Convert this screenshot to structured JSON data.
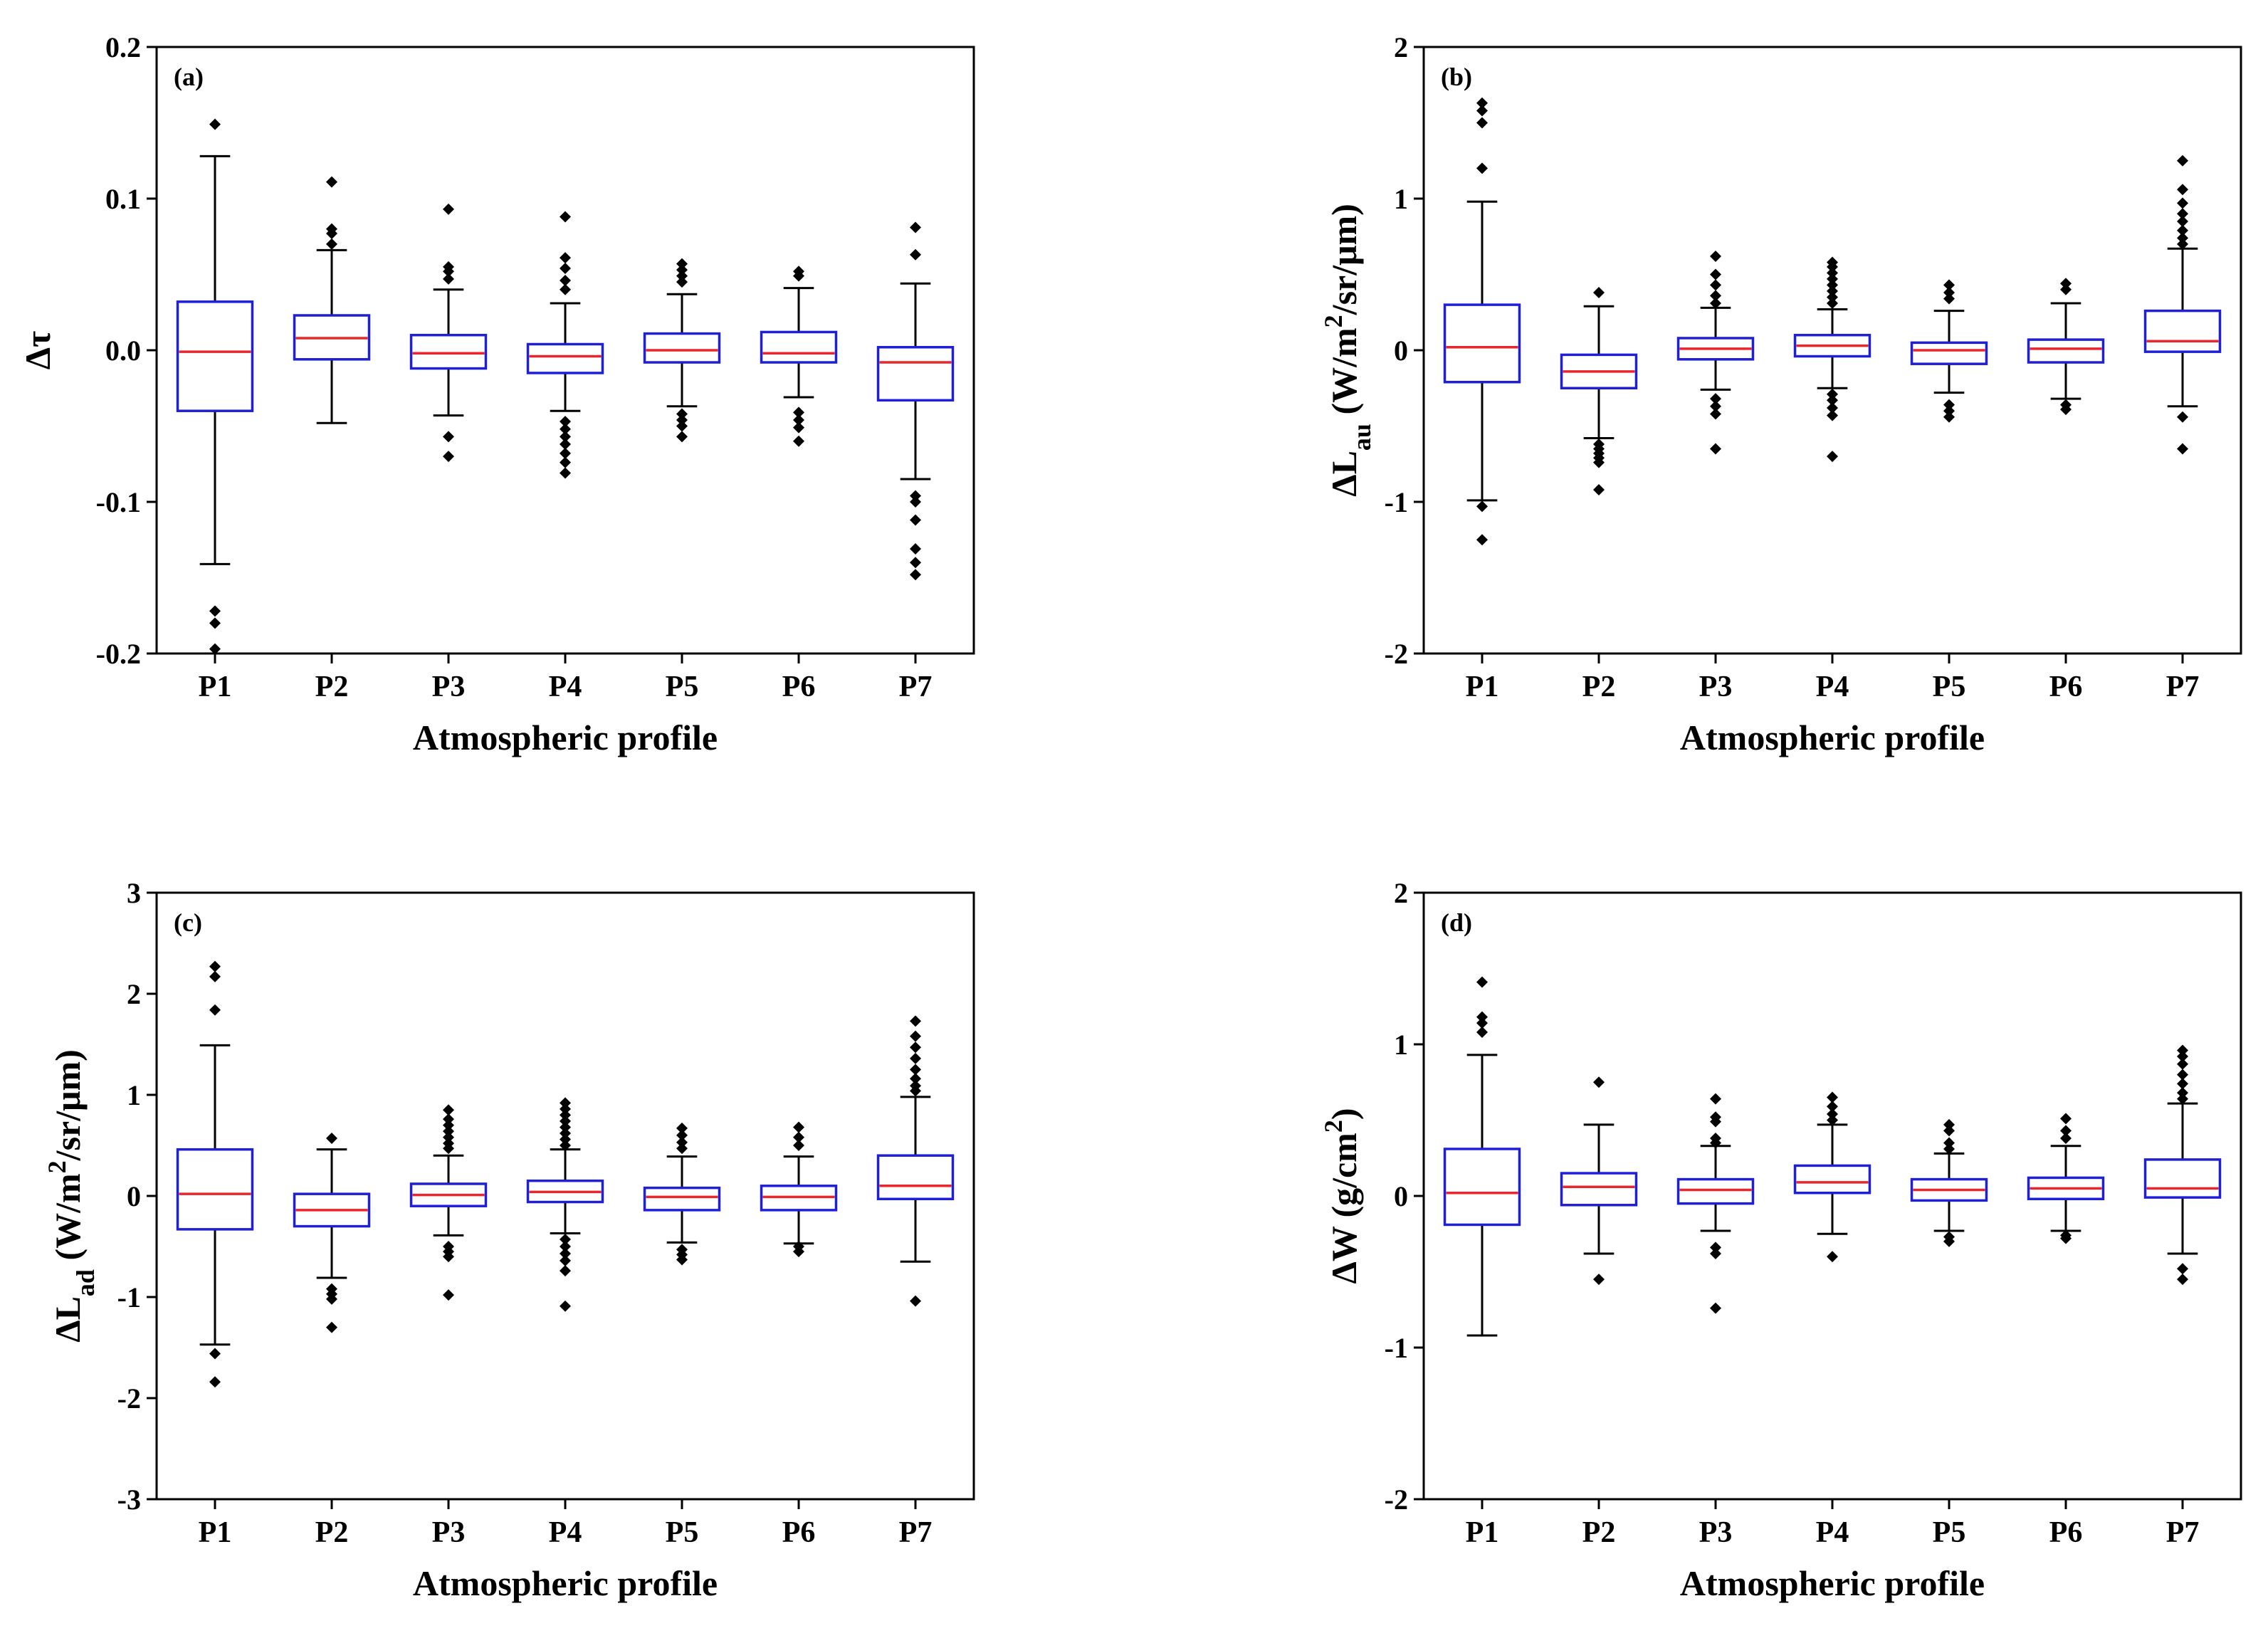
{
  "chart_data": [
    {
      "type": "box",
      "panel_label": "(a)",
      "ylabel_main": "Δτ",
      "ylabel_sub": "",
      "ylabel_tail": "",
      "ylabel_sup": "",
      "ylabel_end": "",
      "xlabel": "Atmospheric profile",
      "categories": [
        "P1",
        "P2",
        "P3",
        "P4",
        "P5",
        "P6",
        "P7"
      ],
      "ylim": [
        -0.2,
        0.2
      ],
      "yticks": [
        -0.2,
        -0.1,
        0.0,
        0.1,
        0.2
      ],
      "ytick_labels": [
        "-0.2",
        "-0.1",
        "0.0",
        "0.1",
        "0.2"
      ],
      "boxes": [
        {
          "whislo": -0.141,
          "q1": -0.04,
          "med": -0.001,
          "q3": 0.032,
          "whishi": 0.128,
          "fliers": [
            0.149,
            -0.172,
            -0.18,
            -0.197
          ]
        },
        {
          "whislo": -0.048,
          "q1": -0.006,
          "med": 0.008,
          "q3": 0.023,
          "whishi": 0.066,
          "fliers": [
            0.111,
            0.08,
            0.077,
            0.07
          ]
        },
        {
          "whislo": -0.043,
          "q1": -0.012,
          "med": -0.002,
          "q3": 0.01,
          "whishi": 0.04,
          "fliers": [
            0.093,
            0.055,
            0.052,
            0.047,
            -0.057,
            -0.07
          ]
        },
        {
          "whislo": -0.04,
          "q1": -0.015,
          "med": -0.004,
          "q3": 0.004,
          "whishi": 0.031,
          "fliers": [
            0.088,
            0.061,
            0.054,
            0.046,
            0.04,
            -0.047,
            -0.052,
            -0.057,
            -0.062,
            -0.068,
            -0.074,
            -0.081
          ]
        },
        {
          "whislo": -0.037,
          "q1": -0.008,
          "med": 0.0,
          "q3": 0.011,
          "whishi": 0.037,
          "fliers": [
            0.057,
            0.053,
            0.049,
            0.045,
            -0.042,
            -0.046,
            -0.05,
            -0.057
          ]
        },
        {
          "whislo": -0.031,
          "q1": -0.008,
          "med": -0.002,
          "q3": 0.012,
          "whishi": 0.041,
          "fliers": [
            0.052,
            0.049,
            -0.041,
            -0.046,
            -0.051,
            -0.06
          ]
        },
        {
          "whislo": -0.085,
          "q1": -0.033,
          "med": -0.008,
          "q3": 0.002,
          "whishi": 0.044,
          "fliers": [
            0.081,
            0.063,
            -0.096,
            -0.1,
            -0.112,
            -0.131,
            -0.14,
            -0.148
          ]
        }
      ]
    },
    {
      "type": "box",
      "panel_label": "(b)",
      "ylabel_main": "ΔL",
      "ylabel_sub": "au",
      "ylabel_tail": " (W/m",
      "ylabel_sup": "2",
      "ylabel_end": "/sr/μm)",
      "xlabel": "Atmospheric profile",
      "categories": [
        "P1",
        "P2",
        "P3",
        "P4",
        "P5",
        "P6",
        "P7"
      ],
      "ylim": [
        -2,
        2
      ],
      "yticks": [
        -2,
        -1,
        0,
        1,
        2
      ],
      "ytick_labels": [
        "-2",
        "-1",
        "0",
        "1",
        "2"
      ],
      "boxes": [
        {
          "whislo": -0.99,
          "q1": -0.21,
          "med": 0.02,
          "q3": 0.3,
          "whishi": 0.98,
          "fliers": [
            1.63,
            1.58,
            1.5,
            1.2,
            -1.03,
            -1.25
          ]
        },
        {
          "whislo": -0.58,
          "q1": -0.25,
          "med": -0.14,
          "q3": -0.03,
          "whishi": 0.29,
          "fliers": [
            0.38,
            -0.62,
            -0.65,
            -0.68,
            -0.71,
            -0.74,
            -0.92
          ]
        },
        {
          "whislo": -0.26,
          "q1": -0.06,
          "med": 0.01,
          "q3": 0.08,
          "whishi": 0.28,
          "fliers": [
            0.62,
            0.5,
            0.43,
            0.36,
            0.31,
            -0.32,
            -0.37,
            -0.42,
            -0.65
          ]
        },
        {
          "whislo": -0.25,
          "q1": -0.04,
          "med": 0.03,
          "q3": 0.1,
          "whishi": 0.27,
          "fliers": [
            0.58,
            0.55,
            0.51,
            0.47,
            0.43,
            0.39,
            0.35,
            0.31,
            -0.29,
            -0.33,
            -0.38,
            -0.43,
            -0.7
          ]
        },
        {
          "whislo": -0.28,
          "q1": -0.09,
          "med": 0.0,
          "q3": 0.05,
          "whishi": 0.26,
          "fliers": [
            0.43,
            0.38,
            0.34,
            -0.36,
            -0.4,
            -0.44
          ]
        },
        {
          "whislo": -0.32,
          "q1": -0.08,
          "med": 0.01,
          "q3": 0.07,
          "whishi": 0.31,
          "fliers": [
            0.44,
            0.4,
            -0.36,
            -0.39
          ]
        },
        {
          "whislo": -0.37,
          "q1": -0.01,
          "med": 0.06,
          "q3": 0.26,
          "whishi": 0.67,
          "fliers": [
            1.25,
            1.06,
            0.97,
            0.9,
            0.85,
            0.79,
            0.74,
            0.7,
            -0.44,
            -0.65
          ]
        }
      ]
    },
    {
      "type": "box",
      "panel_label": "(c)",
      "ylabel_main": "ΔL",
      "ylabel_sub": "ad",
      "ylabel_tail": " (W/m",
      "ylabel_sup": "2",
      "ylabel_end": "/sr/μm)",
      "xlabel": "Atmospheric profile",
      "categories": [
        "P1",
        "P2",
        "P3",
        "P4",
        "P5",
        "P6",
        "P7"
      ],
      "ylim": [
        -3,
        3
      ],
      "yticks": [
        -3,
        -2,
        -1,
        0,
        1,
        2,
        3
      ],
      "ytick_labels": [
        "-3",
        "-2",
        "-1",
        "0",
        "1",
        "2",
        "3"
      ],
      "boxes": [
        {
          "whislo": -1.47,
          "q1": -0.33,
          "med": 0.02,
          "q3": 0.46,
          "whishi": 1.49,
          "fliers": [
            2.27,
            2.17,
            1.84,
            -1.56,
            -1.84
          ]
        },
        {
          "whislo": -0.81,
          "q1": -0.3,
          "med": -0.14,
          "q3": 0.02,
          "whishi": 0.46,
          "fliers": [
            0.57,
            -0.92,
            -0.97,
            -1.02,
            -1.3
          ]
        },
        {
          "whislo": -0.39,
          "q1": -0.1,
          "med": 0.01,
          "q3": 0.12,
          "whishi": 0.4,
          "fliers": [
            0.85,
            0.76,
            0.7,
            0.64,
            0.58,
            0.52,
            0.47,
            -0.5,
            -0.55,
            -0.6,
            -0.98
          ]
        },
        {
          "whislo": -0.37,
          "q1": -0.06,
          "med": 0.04,
          "q3": 0.15,
          "whishi": 0.46,
          "fliers": [
            0.92,
            0.86,
            0.8,
            0.74,
            0.68,
            0.62,
            0.56,
            0.5,
            -0.43,
            -0.5,
            -0.57,
            -0.64,
            -0.74,
            -1.09
          ]
        },
        {
          "whislo": -0.46,
          "q1": -0.14,
          "med": -0.01,
          "q3": 0.08,
          "whishi": 0.39,
          "fliers": [
            0.67,
            0.6,
            0.53,
            0.47,
            -0.53,
            -0.58,
            -0.63
          ]
        },
        {
          "whislo": -0.47,
          "q1": -0.14,
          "med": -0.01,
          "q3": 0.1,
          "whishi": 0.39,
          "fliers": [
            0.68,
            0.58,
            0.5,
            -0.5,
            -0.55
          ]
        },
        {
          "whislo": -0.65,
          "q1": -0.03,
          "med": 0.1,
          "q3": 0.4,
          "whishi": 0.98,
          "fliers": [
            1.73,
            1.58,
            1.47,
            1.36,
            1.25,
            1.16,
            1.09,
            1.04,
            -1.04
          ]
        }
      ]
    },
    {
      "type": "box",
      "panel_label": "(d)",
      "ylabel_main": "ΔW (g/cm",
      "ylabel_sub": "",
      "ylabel_tail": "",
      "ylabel_sup": "2",
      "ylabel_end": ")",
      "xlabel": "Atmospheric profile",
      "categories": [
        "P1",
        "P2",
        "P3",
        "P4",
        "P5",
        "P6",
        "P7"
      ],
      "ylim": [
        -2,
        2
      ],
      "yticks": [
        -2,
        -1,
        0,
        1,
        2
      ],
      "ytick_labels": [
        "-2",
        "-1",
        "0",
        "1",
        "2"
      ],
      "boxes": [
        {
          "whislo": -0.92,
          "q1": -0.19,
          "med": 0.02,
          "q3": 0.31,
          "whishi": 0.93,
          "fliers": [
            1.41,
            1.18,
            1.14,
            1.08
          ]
        },
        {
          "whislo": -0.38,
          "q1": -0.06,
          "med": 0.06,
          "q3": 0.15,
          "whishi": 0.47,
          "fliers": [
            0.75,
            -0.55
          ]
        },
        {
          "whislo": -0.23,
          "q1": -0.05,
          "med": 0.04,
          "q3": 0.11,
          "whishi": 0.33,
          "fliers": [
            0.64,
            0.52,
            0.49,
            0.38,
            0.35,
            -0.34,
            -0.38,
            -0.74
          ]
        },
        {
          "whislo": -0.25,
          "q1": 0.02,
          "med": 0.09,
          "q3": 0.2,
          "whishi": 0.47,
          "fliers": [
            0.65,
            0.59,
            0.54,
            0.5,
            -0.4
          ]
        },
        {
          "whislo": -0.23,
          "q1": -0.03,
          "med": 0.04,
          "q3": 0.11,
          "whishi": 0.28,
          "fliers": [
            0.47,
            0.43,
            0.35,
            0.31,
            -0.27,
            -0.3
          ]
        },
        {
          "whislo": -0.23,
          "q1": -0.02,
          "med": 0.05,
          "q3": 0.12,
          "whishi": 0.33,
          "fliers": [
            0.51,
            0.43,
            0.38,
            -0.26,
            -0.28
          ]
        },
        {
          "whislo": -0.38,
          "q1": -0.01,
          "med": 0.05,
          "q3": 0.24,
          "whishi": 0.61,
          "fliers": [
            0.96,
            0.92,
            0.87,
            0.8,
            0.74,
            0.68,
            0.64,
            -0.48,
            -0.55
          ]
        }
      ]
    }
  ]
}
